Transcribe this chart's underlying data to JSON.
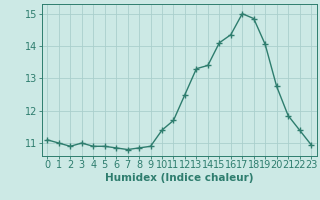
{
  "x": [
    0,
    1,
    2,
    3,
    4,
    5,
    6,
    7,
    8,
    9,
    10,
    11,
    12,
    13,
    14,
    15,
    16,
    17,
    18,
    19,
    20,
    21,
    22,
    23
  ],
  "y": [
    11.1,
    11.0,
    10.9,
    11.0,
    10.9,
    10.9,
    10.85,
    10.8,
    10.85,
    10.9,
    11.4,
    11.7,
    12.5,
    13.3,
    13.4,
    14.1,
    14.35,
    15.0,
    14.85,
    14.05,
    12.75,
    11.85,
    11.4,
    10.95
  ],
  "line_color": "#2e7d6e",
  "marker": "+",
  "marker_size": 4,
  "bg_color": "#cce9e5",
  "grid_color": "#aacfcc",
  "axis_color": "#2e7d6e",
  "xlabel": "Humidex (Indice chaleur)",
  "xlim": [
    -0.5,
    23.5
  ],
  "ylim": [
    10.6,
    15.3
  ],
  "yticks": [
    11,
    12,
    13,
    14,
    15
  ],
  "xticks": [
    0,
    1,
    2,
    3,
    4,
    5,
    6,
    7,
    8,
    9,
    10,
    11,
    12,
    13,
    14,
    15,
    16,
    17,
    18,
    19,
    20,
    21,
    22,
    23
  ],
  "xlabel_fontsize": 7.5,
  "tick_fontsize": 7,
  "line_width": 1.0,
  "marker_edge_width": 1.0
}
